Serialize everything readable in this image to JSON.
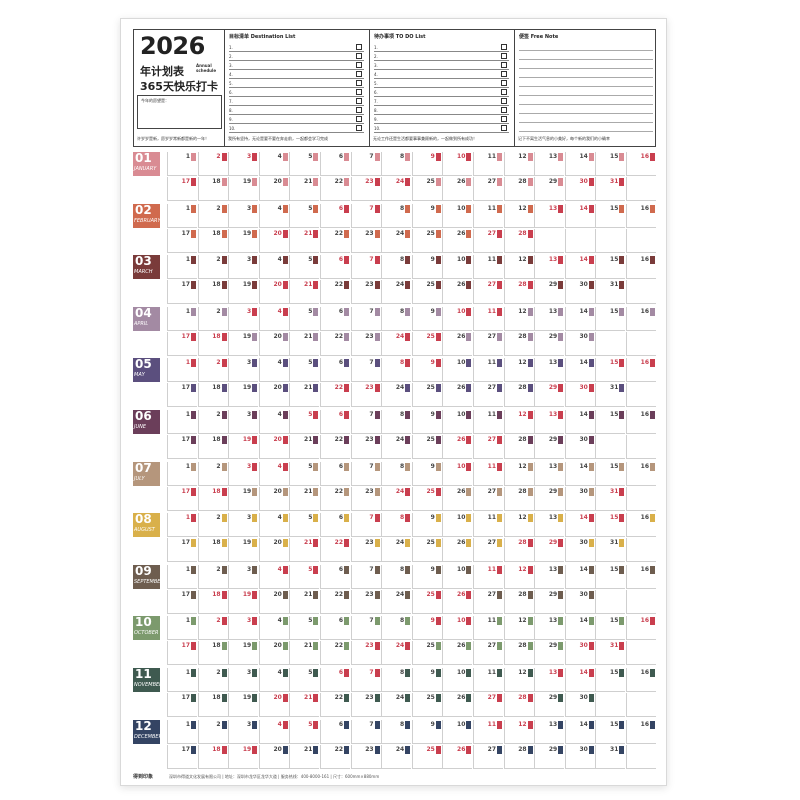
{
  "header": {
    "year": "2026",
    "subtitle1": "年计划表",
    "subtitle1_en": "Annual schedule",
    "subtitle2": "365天快乐打卡",
    "prompt": "今年的愿望是：",
    "quote_left": "许岁岁是新，愿岁岁常新都是新的一年！",
    "goal_title": "目标清单 Destination List",
    "goal_quote": "我所有坚持，无论是要不要在奔走前，一起都会学习完成",
    "todo_title": "待办事项 TO DO List",
    "todo_quote": "无论工作还是生活都要事事兼顾新的，一起做到所有成功！",
    "free_title": "便签 Free Note",
    "free_quote": "记下不离生活气息的小美好，每个新的我们的小确幸"
  },
  "list_numbers": [
    "1.",
    "2.",
    "3.",
    "4.",
    "5.",
    "6.",
    "7.",
    "8.",
    "9.",
    "10."
  ],
  "months": [
    {
      "num": "01",
      "name": "JANUARY",
      "color": "#d98b93",
      "days": 31,
      "start": 4,
      "accent": "#c93e4e"
    },
    {
      "num": "02",
      "name": "FEBRUARY",
      "color": "#d06a4e",
      "days": 28,
      "start": 0,
      "accent": "#c93e4e"
    },
    {
      "num": "03",
      "name": "MARCH",
      "color": "#7a3b3a",
      "days": 31,
      "start": 0,
      "accent": "#c93e4e"
    },
    {
      "num": "04",
      "name": "APRIL",
      "color": "#a38aa3",
      "days": 30,
      "start": 3,
      "accent": "#c93e4e"
    },
    {
      "num": "05",
      "name": "MAY",
      "color": "#5b4f7e",
      "days": 31,
      "start": 5,
      "accent": "#c93e4e"
    },
    {
      "num": "06",
      "name": "JUNE",
      "color": "#6b3e5a",
      "days": 30,
      "start": 1,
      "accent": "#c93e4e"
    },
    {
      "num": "07",
      "name": "JULY",
      "color": "#b5967c",
      "days": 31,
      "start": 3,
      "accent": "#c93e4e"
    },
    {
      "num": "08",
      "name": "AUGUST",
      "color": "#d9b04a",
      "days": 31,
      "start": 6,
      "accent": "#c93e4e"
    },
    {
      "num": "09",
      "name": "SEPTEMBER",
      "color": "#6e5d4f",
      "days": 30,
      "start": 2,
      "accent": "#c93e4e"
    },
    {
      "num": "10",
      "name": "OCTOBER",
      "color": "#7c9a6d",
      "days": 31,
      "start": 4,
      "accent": "#c93e4e"
    },
    {
      "num": "11",
      "name": "NOVEMBER",
      "color": "#3f5a50",
      "days": 30,
      "start": 0,
      "accent": "#c93e4e"
    },
    {
      "num": "12",
      "name": "DECEMBER",
      "color": "#344463",
      "days": 31,
      "start": 2,
      "accent": "#c93e4e"
    }
  ],
  "footer": {
    "brand": "得到印象",
    "text": "深圳市得道文化发展有限公司 | 地址：深圳市龙华区龙华大道 | 服务热线：400-8000-161 | 尺寸：600mm×880mm"
  }
}
